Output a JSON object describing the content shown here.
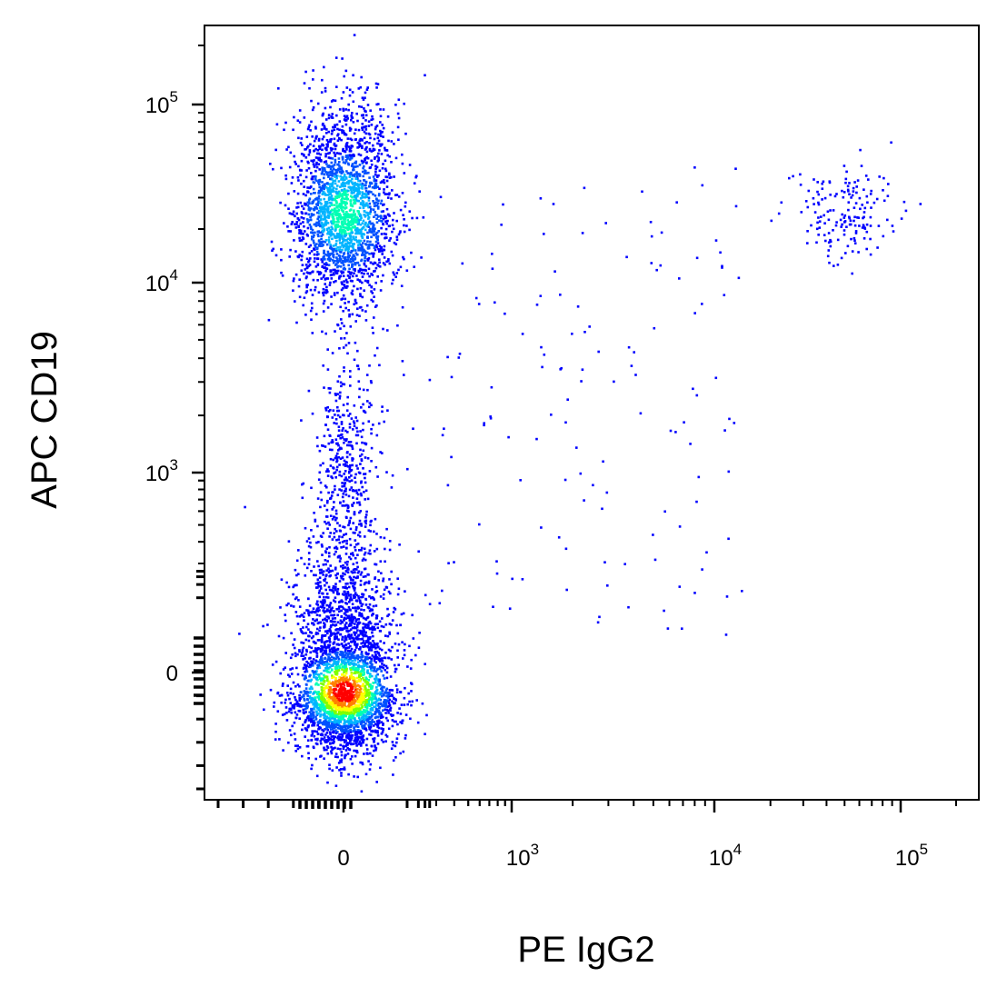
{
  "chart_data": {
    "type": "scatter",
    "style": "density-colored flow cytometry dot plot (biexponential axes)",
    "title": "",
    "xlabel": "PE  IgG2",
    "ylabel": "APC  CD19",
    "x_scale": "biexponential",
    "y_scale": "biexponential",
    "xlim": [
      -250,
      200000
    ],
    "ylim": [
      -250,
      200000
    ],
    "x_ticks": [
      {
        "value": 0,
        "base": "0",
        "exp": ""
      },
      {
        "value": 1000,
        "base": "10",
        "exp": "3"
      },
      {
        "value": 10000,
        "base": "10",
        "exp": "4"
      },
      {
        "value": 100000,
        "base": "10",
        "exp": "5"
      }
    ],
    "y_ticks": [
      {
        "value": 0,
        "base": "0",
        "exp": ""
      },
      {
        "value": 1000,
        "base": "10",
        "exp": "3"
      },
      {
        "value": 10000,
        "base": "10",
        "exp": "4"
      },
      {
        "value": 100000,
        "base": "10",
        "exp": "5"
      }
    ],
    "density_colors": [
      "#0000ff",
      "#0050ff",
      "#00b4ff",
      "#00ffb4",
      "#7fff00",
      "#ffff00",
      "#ff8000",
      "#ff0000"
    ],
    "point_color": "#0000ff",
    "populations": [
      {
        "name": "CD19- PE-",
        "x_center": 0,
        "y_center": 0,
        "relative_size": 1.0
      },
      {
        "name": "CD19+ PE-",
        "x_center": 0,
        "y_center": 25000,
        "relative_size": 0.55
      },
      {
        "name": "CD19+ PE+",
        "x_center": 50000,
        "y_center": 25000,
        "relative_size": 0.03
      }
    ],
    "grid": false,
    "legend": "none"
  }
}
